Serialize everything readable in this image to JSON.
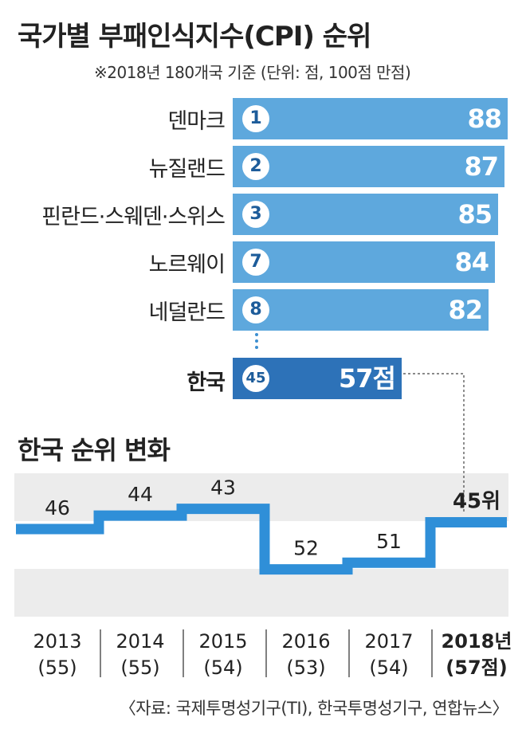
{
  "title": "국가별 부패인식지수(CPI) 순위",
  "subtitle": "※2018년 180개국 기준  (단위: 점, 100점 만점)",
  "ranking": [
    {
      "country": "덴마크",
      "rank": "1",
      "score": "88"
    },
    {
      "country": "뉴질랜드",
      "rank": "2",
      "score": "87"
    },
    {
      "country": "핀란드·스웨덴·스위스",
      "rank": "3",
      "score": "85"
    },
    {
      "country": "노르웨이",
      "rank": "7",
      "score": "84"
    },
    {
      "country": "네덜란드",
      "rank": "8",
      "score": "82"
    }
  ],
  "korea": {
    "country": "한국",
    "rank": "45",
    "score": "57점"
  },
  "history_title": "한국 순위 변화",
  "source": "〈자료: 국제투명성기구(TI), 한국투명성기구, 연합뉴스〉",
  "colors": {
    "bar": "#5ea8dd",
    "highlight_bar": "#2d72b8",
    "line": "#2f8fd8",
    "band": "#ececec"
  },
  "chart_data": [
    {
      "type": "bar",
      "title": "국가별 부패인식지수(CPI) 순위",
      "categories": [
        "덴마크",
        "뉴질랜드",
        "핀란드·스웨덴·스위스",
        "노르웨이",
        "네덜란드",
        "한국"
      ],
      "ranks": [
        1,
        2,
        3,
        7,
        8,
        45
      ],
      "values": [
        88,
        87,
        85,
        84,
        82,
        57
      ],
      "orientation": "horizontal"
    },
    {
      "type": "line",
      "title": "한국 순위 변화",
      "step": true,
      "y_inverted": true,
      "categories": [
        "2013",
        "2014",
        "2015",
        "2016",
        "2017",
        "2018년"
      ],
      "values": [
        46,
        44,
        43,
        52,
        51,
        45
      ],
      "value_labels": [
        "46",
        "44",
        "43",
        "52",
        "51",
        "45위"
      ],
      "scores": [
        "(55)",
        "(55)",
        "(54)",
        "(53)",
        "(54)",
        "(57점)"
      ],
      "highlight_index": 5
    }
  ]
}
